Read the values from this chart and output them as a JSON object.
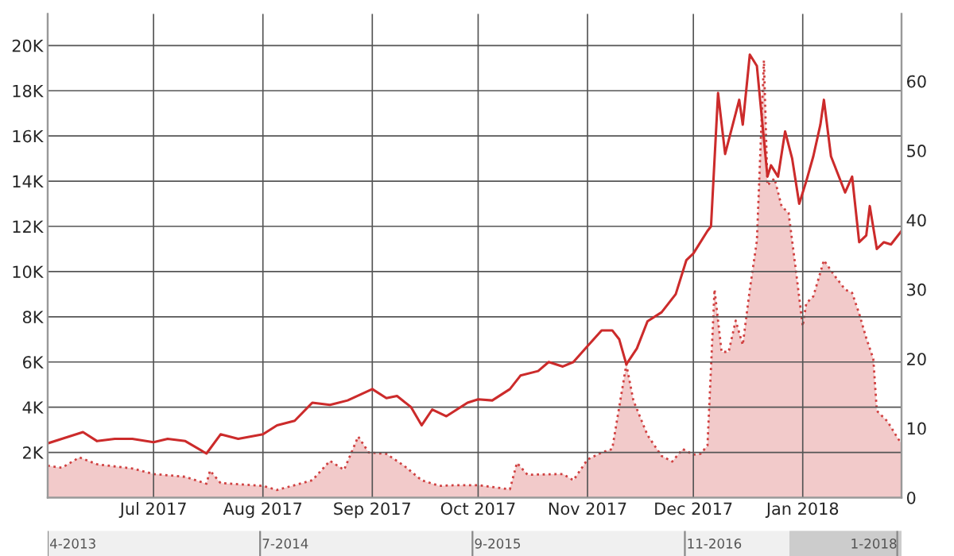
{
  "chart_data": {
    "type": "line",
    "xlim": [
      "2017-06-01",
      "2018-01-29"
    ],
    "xticks": [
      {
        "value": "2017-07-01",
        "label": "Jul 2017"
      },
      {
        "value": "2017-08-01",
        "label": "Aug 2017"
      },
      {
        "value": "2017-09-01",
        "label": "Sep 2017"
      },
      {
        "value": "2017-10-01",
        "label": "Oct 2017"
      },
      {
        "value": "2017-11-01",
        "label": "Nov 2017"
      },
      {
        "value": "2017-12-01",
        "label": "Dec 2017"
      },
      {
        "value": "2018-01-01",
        "label": "Jan 2018"
      }
    ],
    "ylim": [
      0,
      21400
    ],
    "yticks": [
      {
        "value": 2000,
        "label": "2K"
      },
      {
        "value": 4000,
        "label": "4K"
      },
      {
        "value": 6000,
        "label": "6K"
      },
      {
        "value": 8000,
        "label": "8K"
      },
      {
        "value": 10000,
        "label": "10K"
      },
      {
        "value": 12000,
        "label": "12K"
      },
      {
        "value": 14000,
        "label": "14K"
      },
      {
        "value": 16000,
        "label": "16K"
      },
      {
        "value": 18000,
        "label": "18K"
      },
      {
        "value": 20000,
        "label": "20K"
      }
    ],
    "y2lim": [
      0,
      69.7
    ],
    "y2ticks": [
      0,
      10,
      20,
      30,
      40,
      50,
      60
    ],
    "grid": true,
    "series": [
      {
        "type": "area",
        "axis": "y2",
        "color": "#d04040",
        "line_style": "dotted",
        "x": [
          "2017-06-01",
          "2017-06-05",
          "2017-06-10",
          "2017-06-15",
          "2017-06-25",
          "2017-07-01",
          "2017-07-10",
          "2017-07-16",
          "2017-07-17",
          "2017-07-20",
          "2017-08-01",
          "2017-08-05",
          "2017-08-15",
          "2017-08-20",
          "2017-08-24",
          "2017-08-28",
          "2017-08-31",
          "2017-09-05",
          "2017-09-10",
          "2017-09-15",
          "2017-09-20",
          "2017-09-25",
          "2017-10-01",
          "2017-10-10",
          "2017-10-12",
          "2017-10-15",
          "2017-10-25",
          "2017-10-28",
          "2017-11-01",
          "2017-11-05",
          "2017-11-08",
          "2017-11-12",
          "2017-11-14",
          "2017-11-18",
          "2017-11-22",
          "2017-11-25",
          "2017-11-28",
          "2017-12-01",
          "2017-12-03",
          "2017-12-05",
          "2017-12-07",
          "2017-12-09",
          "2017-12-11",
          "2017-12-13",
          "2017-12-15",
          "2017-12-17",
          "2017-12-19",
          "2017-12-21",
          "2017-12-22",
          "2017-12-24",
          "2017-12-26",
          "2017-12-28",
          "2017-12-30",
          "2018-01-01",
          "2018-01-02",
          "2018-01-04",
          "2018-01-07",
          "2018-01-10",
          "2018-01-13",
          "2018-01-15",
          "2018-01-17",
          "2018-01-19",
          "2018-01-21",
          "2018-01-22",
          "2018-01-25",
          "2018-01-28",
          "2018-01-29"
        ],
        "values": [
          4.6,
          4.3,
          5.8,
          4.8,
          4.2,
          3.4,
          3.0,
          2.0,
          3.9,
          2.1,
          1.7,
          1.1,
          2.5,
          5.3,
          4.0,
          8.8,
          6.5,
          6.3,
          4.6,
          2.5,
          1.7,
          1.8,
          1.8,
          1.2,
          5.0,
          3.3,
          3.4,
          2.5,
          5.5,
          6.5,
          7.0,
          19.2,
          14,
          9,
          6,
          5.2,
          7.0,
          6.2,
          6.3,
          7.5,
          30,
          21,
          21,
          25.5,
          22,
          30,
          37,
          63,
          45,
          46,
          42,
          41,
          33,
          24.7,
          28,
          29,
          34.2,
          32,
          30,
          29.5,
          26.5,
          23,
          20,
          12.5,
          11,
          8.5,
          7.8
        ]
      },
      {
        "color": "#cc2b2b",
        "line_style": "solid",
        "x": [
          "2017-06-01",
          "2017-06-05",
          "2017-06-11",
          "2017-06-15",
          "2017-06-20",
          "2017-06-25",
          "2017-07-01",
          "2017-07-05",
          "2017-07-10",
          "2017-07-16",
          "2017-07-20",
          "2017-07-25",
          "2017-08-01",
          "2017-08-05",
          "2017-08-10",
          "2017-08-15",
          "2017-08-20",
          "2017-08-25",
          "2017-09-01",
          "2017-09-05",
          "2017-09-08",
          "2017-09-12",
          "2017-09-15",
          "2017-09-18",
          "2017-09-22",
          "2017-09-28",
          "2017-10-01",
          "2017-10-05",
          "2017-10-10",
          "2017-10-13",
          "2017-10-18",
          "2017-10-21",
          "2017-10-25",
          "2017-10-28",
          "2017-11-01",
          "2017-11-05",
          "2017-11-08",
          "2017-11-10",
          "2017-11-12",
          "2017-11-15",
          "2017-11-18",
          "2017-11-22",
          "2017-11-26",
          "2017-11-29",
          "2017-12-01",
          "2017-12-05",
          "2017-12-06",
          "2017-12-08",
          "2017-12-10",
          "2017-12-14",
          "2017-12-15",
          "2017-12-17",
          "2017-12-19",
          "2017-12-22",
          "2017-12-23",
          "2017-12-25",
          "2017-12-27",
          "2017-12-29",
          "2017-12-31",
          "2018-01-02",
          "2018-01-04",
          "2018-01-06",
          "2018-01-07",
          "2018-01-09",
          "2018-01-11",
          "2018-01-13",
          "2018-01-15",
          "2018-01-17",
          "2018-01-19",
          "2018-01-20",
          "2018-01-22",
          "2018-01-24",
          "2018-01-26",
          "2018-01-29"
        ],
        "values": [
          2400,
          2600,
          2900,
          2500,
          2600,
          2600,
          2450,
          2600,
          2500,
          1950,
          2800,
          2600,
          2800,
          3200,
          3400,
          4200,
          4100,
          4300,
          4800,
          4400,
          4500,
          4000,
          3200,
          3900,
          3600,
          4200,
          4350,
          4300,
          4800,
          5400,
          5600,
          6000,
          5800,
          6000,
          6700,
          7400,
          7400,
          7000,
          5900,
          6600,
          7800,
          8200,
          9000,
          10500,
          10800,
          11800,
          12000,
          17900,
          15200,
          17600,
          16500,
          19600,
          19100,
          14200,
          14700,
          14200,
          16200,
          15000,
          13000,
          14000,
          15100,
          16500,
          17600,
          15100,
          14300,
          13500,
          14200,
          11300,
          11600,
          12900,
          11000,
          11300,
          11200,
          11800
        ]
      }
    ],
    "annotations": [
      "4-2013",
      "7-2014",
      "9-2015",
      "11-2016",
      "1-2018"
    ]
  }
}
